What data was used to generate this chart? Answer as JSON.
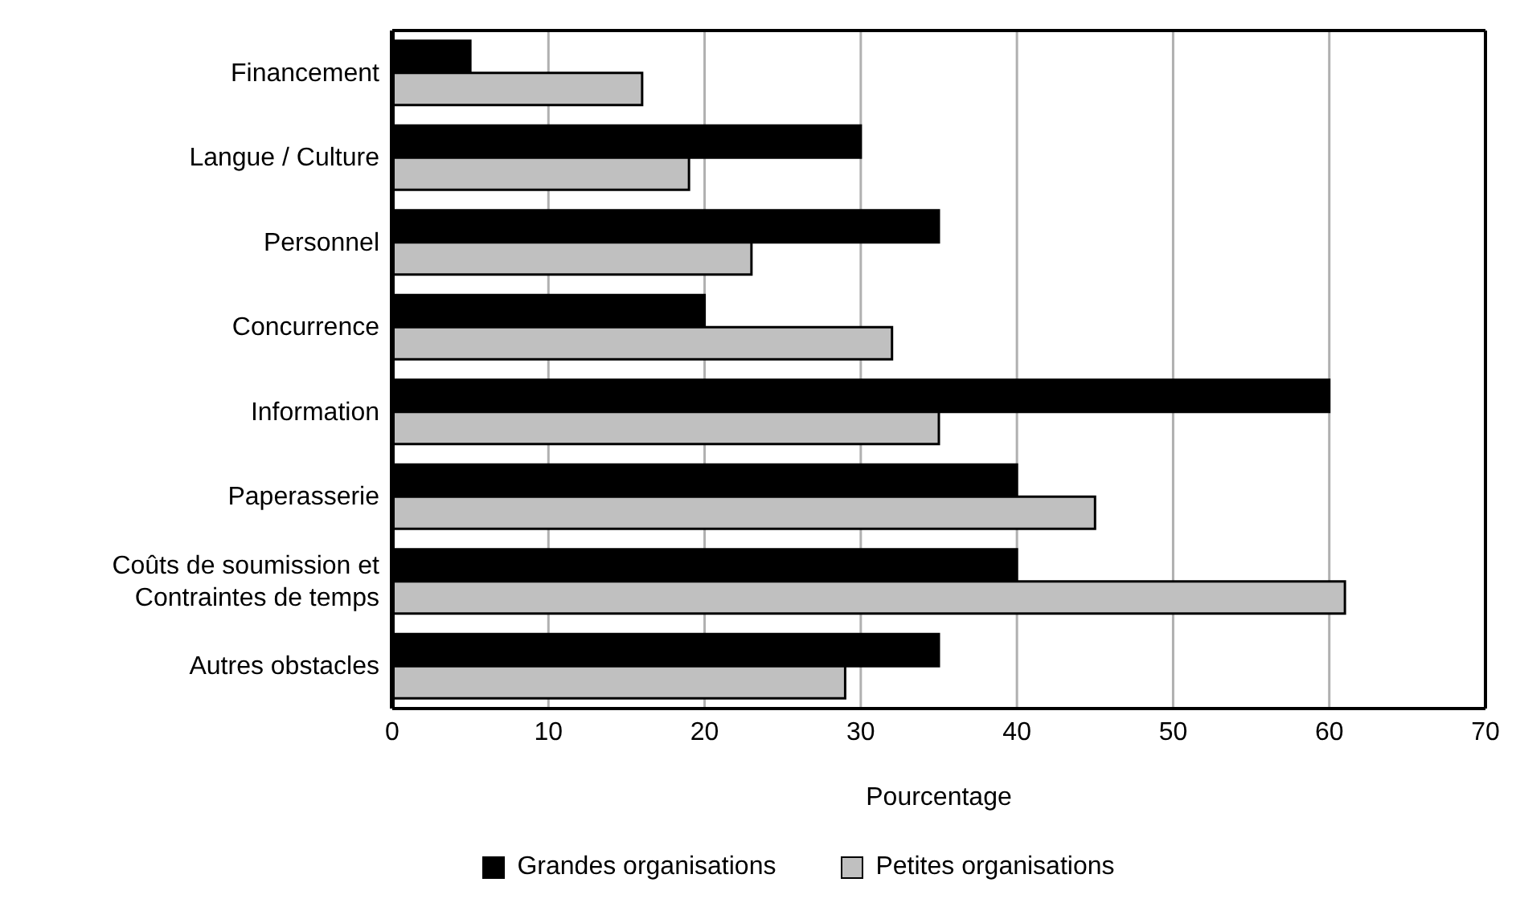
{
  "chart_data": {
    "type": "bar",
    "orientation": "horizontal",
    "categories": [
      "Financement",
      "Langue / Culture",
      "Personnel",
      "Concurrence",
      "Information",
      "Paperasserie",
      "Coûts de soumission et\nContraintes de temps",
      "Autres obstacles"
    ],
    "series": [
      {
        "name": "Grandes organisations",
        "color": "#000000",
        "values": [
          5,
          30,
          35,
          20,
          60,
          40,
          40,
          35
        ]
      },
      {
        "name": "Petites organisations",
        "color": "#c0c0c0",
        "values": [
          16,
          19,
          23,
          32,
          35,
          45,
          61,
          29
        ]
      }
    ],
    "xlabel": "Pourcentage",
    "xlim": [
      0,
      70
    ],
    "xticks": [
      0,
      10,
      20,
      30,
      40,
      50,
      60,
      70
    ],
    "grid": "x",
    "legend": "bottom"
  }
}
